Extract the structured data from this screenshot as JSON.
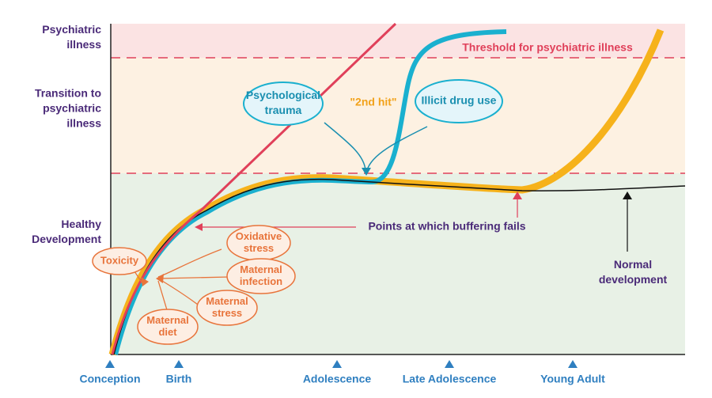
{
  "y_axis_zones": [
    {
      "lines": [
        "Psychiatric",
        "illness"
      ]
    },
    {
      "lines": [
        "Transition to",
        "psychiatric",
        "illness"
      ]
    },
    {
      "lines": [
        "Healthy",
        "Development"
      ]
    }
  ],
  "x_axis_stages": [
    "Conception",
    "Birth",
    "Adolescence",
    "Late Adolescence",
    "Young Adult"
  ],
  "threshold_label": "Threshold for psychiatric illness",
  "second_hit": {
    "label": "\"2nd hit\"",
    "causes": [
      {
        "lines": [
          "Psychological",
          "trauma"
        ]
      },
      {
        "lines": [
          "Illicit drug use"
        ]
      }
    ]
  },
  "buffering_label": "Points at which buffering fails",
  "normal_label": {
    "lines": [
      "Normal",
      "development"
    ]
  },
  "early_factors": [
    {
      "lines": [
        "Toxicity"
      ]
    },
    {
      "lines": [
        "Oxidative",
        "stress"
      ]
    },
    {
      "lines": [
        "Maternal",
        "infection"
      ]
    },
    {
      "lines": [
        "Maternal",
        "stress"
      ]
    },
    {
      "lines": [
        "Maternal",
        "diet"
      ]
    }
  ]
}
